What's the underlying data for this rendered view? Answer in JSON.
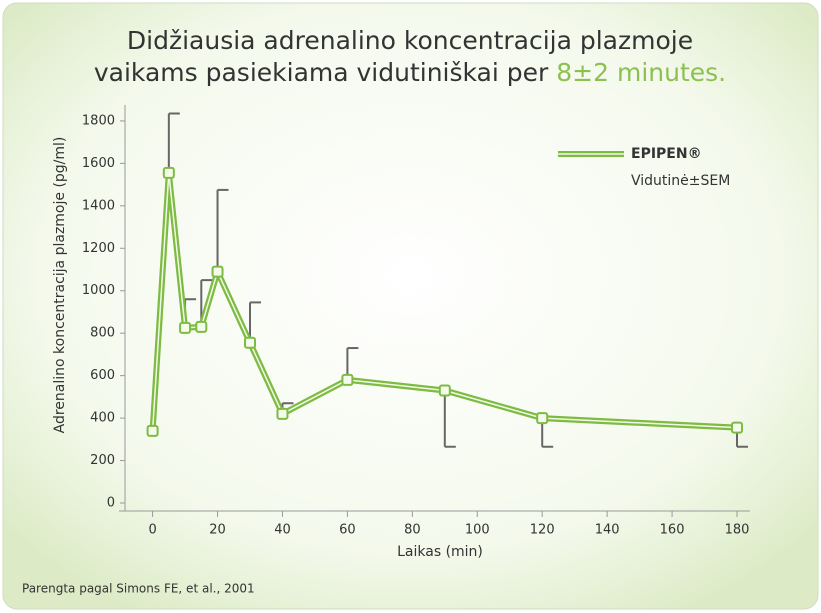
{
  "chart_data": {
    "type": "line",
    "title": [
      "Didžiausia adrenalino koncentracija plazmoje",
      "vaikams pasiekiama vidutiniškai per"
    ],
    "title_highlight": "8±2 minutes.",
    "x_label": "Laikas (min)",
    "y_label": "Adrenalino koncentracija plazmoje (pg/ml)",
    "source": "Parengta pagal Simons FE, et al., 2001",
    "legend_note": "Vidutinė±SEM",
    "x": [
      0,
      5,
      10,
      15,
      20,
      30,
      40,
      60,
      90,
      120,
      180
    ],
    "series": [
      {
        "name": "EPIPEN®",
        "color": "#7dbb42",
        "values": [
          340,
          1555,
          825,
          830,
          1090,
          755,
          420,
          580,
          530,
          400,
          355
        ],
        "errors": [
          null,
          280,
          135,
          220,
          385,
          190,
          50,
          150,
          265,
          135,
          90
        ],
        "error_side": [
          null,
          "up",
          "up",
          "up",
          "up",
          "up",
          "up",
          "up",
          "down",
          "down",
          "down"
        ]
      }
    ],
    "xlim": [
      -8.5,
      184
    ],
    "ylim": [
      0,
      1875
    ],
    "xticks": [
      0,
      20,
      40,
      60,
      80,
      100,
      120,
      140,
      160,
      180
    ],
    "yticks": [
      0,
      200,
      400,
      600,
      800,
      1000,
      1200,
      1400,
      1600,
      1800
    ],
    "legend": "upper right"
  }
}
